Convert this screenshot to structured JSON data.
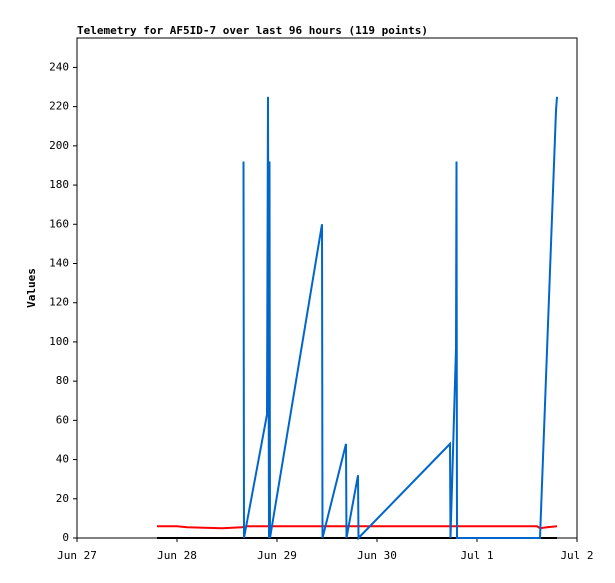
{
  "chart_data": {
    "type": "line",
    "title": "Telemetry for AF5ID-7 over last 96 hours (119 points)",
    "y_label": "Values",
    "xlim": [
      0,
      5
    ],
    "xticks": [
      {
        "value": 0,
        "label": "Jun 27"
      },
      {
        "value": 1,
        "label": "Jun 28"
      },
      {
        "value": 2,
        "label": "Jun 29"
      },
      {
        "value": 3,
        "label": "Jun 30"
      },
      {
        "value": 4,
        "label": "Jul 1"
      },
      {
        "value": 5,
        "label": "Jul 2"
      }
    ],
    "ylim": [
      0,
      255
    ],
    "yticks": [
      0,
      20,
      40,
      60,
      80,
      100,
      120,
      140,
      160,
      180,
      200,
      220,
      240
    ],
    "grid": false,
    "series": [
      {
        "color": "#ff0000",
        "x": [
          0.8,
          1.0,
          1.1,
          1.45,
          1.65,
          1.7,
          3.0,
          4.6,
          4.63,
          4.7,
          4.8
        ],
        "values": [
          6,
          6,
          5.5,
          5,
          5.5,
          6,
          6,
          6,
          5,
          5.5,
          6
        ]
      },
      {
        "color": "#000000",
        "x": [
          0.8,
          4.8
        ],
        "values": [
          0,
          0
        ]
      },
      {
        "color": "#0066cc",
        "x": [
          1.665,
          1.67,
          1.9,
          1.91,
          1.92,
          1.925,
          1.93,
          2.45,
          2.455,
          2.69,
          2.695,
          2.81,
          2.815,
          3.73,
          3.735,
          3.79,
          3.795,
          3.8,
          4.63,
          4.79,
          4.8
        ],
        "values": [
          192,
          0,
          63,
          225,
          0,
          192,
          0,
          160,
          0,
          48,
          0,
          32,
          0,
          48,
          0,
          97,
          192,
          0,
          0,
          218,
          225
        ]
      }
    ]
  }
}
